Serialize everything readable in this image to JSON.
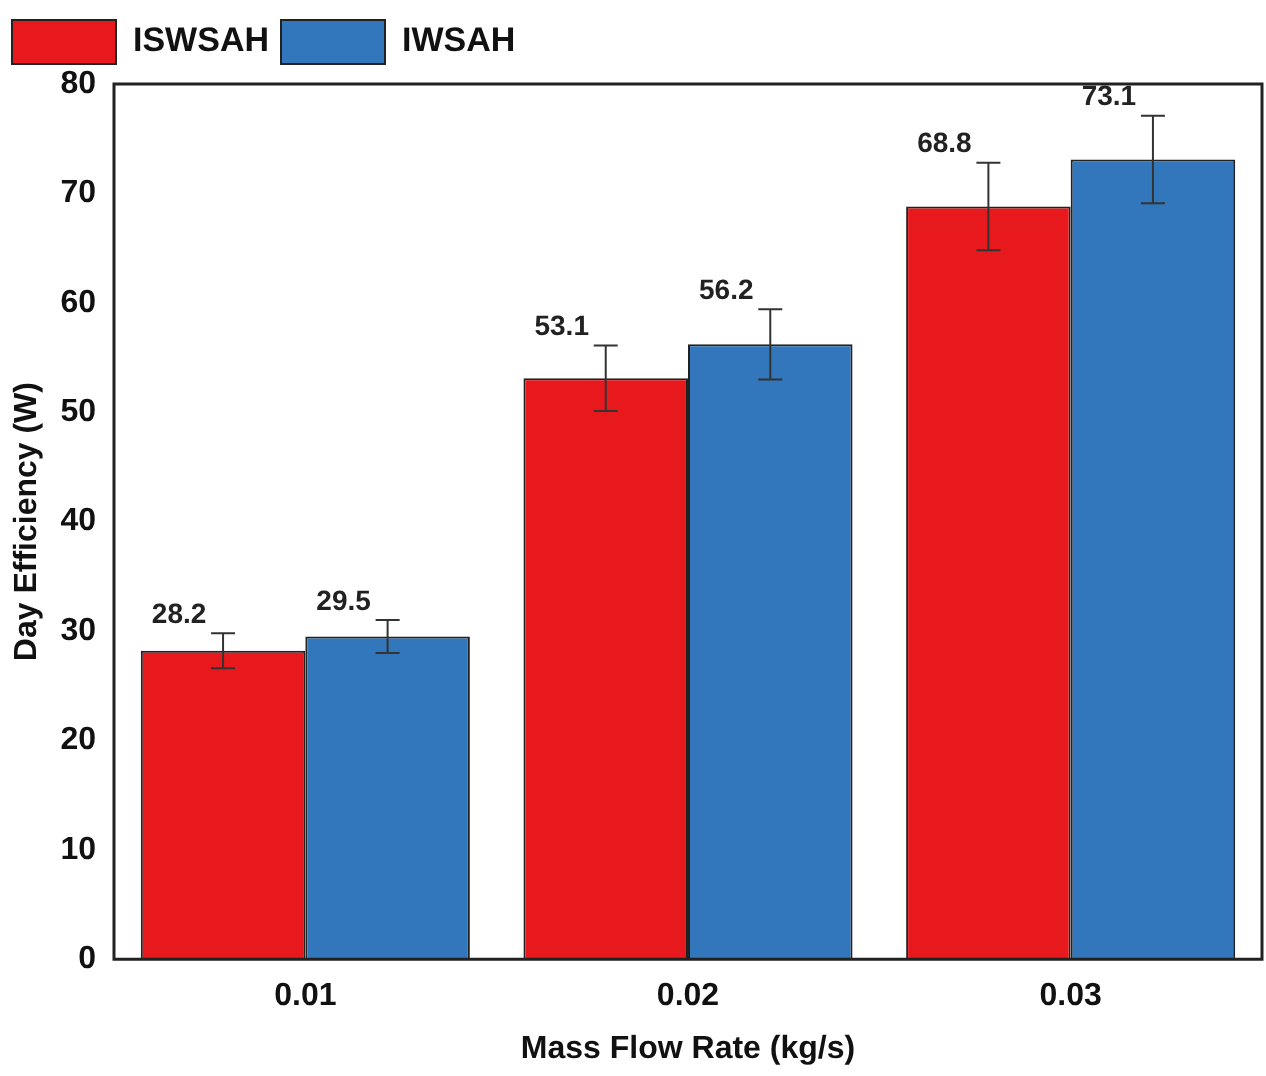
{
  "chart_data": {
    "type": "bar",
    "xlabel": "Mass Flow Rate (kg/s)",
    "ylabel": "Day Efficiency (W)",
    "categories": [
      "0.01",
      "0.02",
      "0.03"
    ],
    "series": [
      {
        "name": "ISWSAH",
        "color": "#e8191c",
        "values": [
          28.2,
          53.1,
          68.8
        ],
        "errors": [
          1.6,
          3,
          4
        ]
      },
      {
        "name": "IWSAH",
        "color": "#3277bb",
        "values": [
          29.5,
          56.2,
          73.1
        ],
        "errors": [
          1.5,
          3.2,
          4
        ]
      }
    ],
    "ylim": [
      0,
      80
    ],
    "yticks": [
      0,
      10,
      20,
      30,
      40,
      50,
      60,
      70,
      80
    ],
    "grid": false,
    "legend": "top left",
    "data_labels": true
  }
}
